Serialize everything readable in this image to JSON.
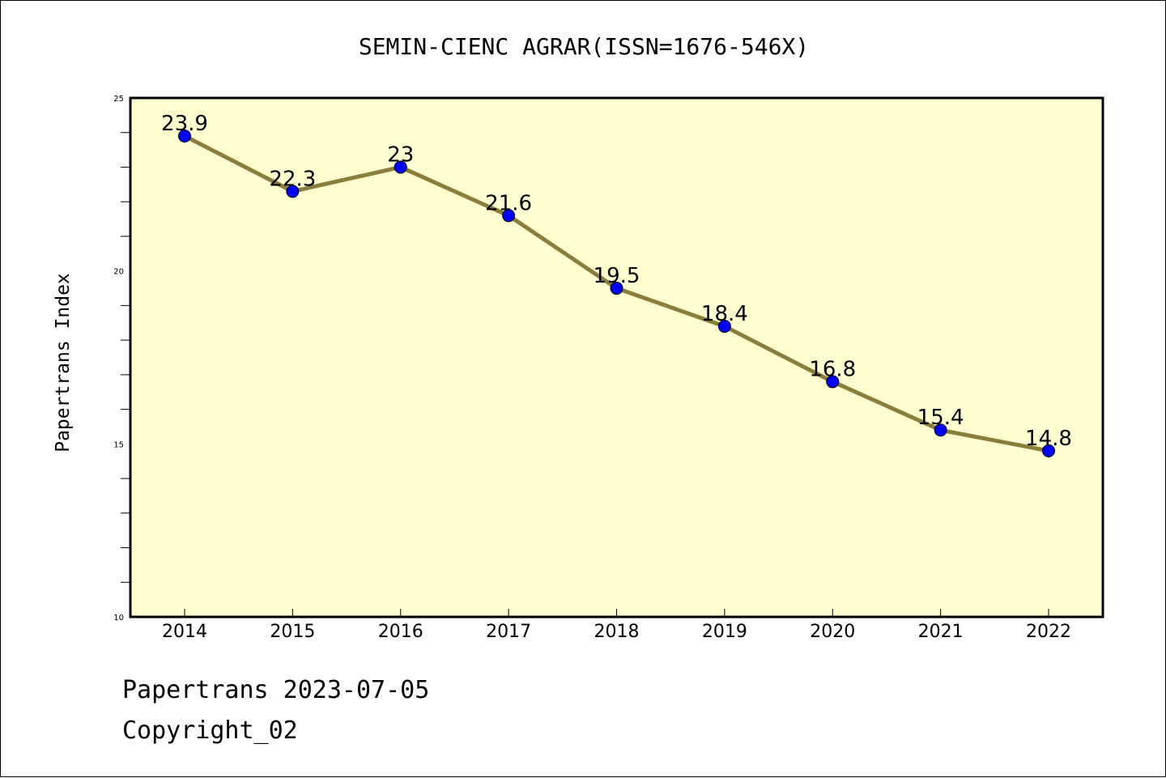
{
  "chart_data": {
    "type": "line",
    "title": "SEMIN-CIENC AGRAR(ISSN=1676-546X)",
    "xlabel": "",
    "ylabel": "Papertrans Index",
    "categories": [
      "2014",
      "2015",
      "2016",
      "2017",
      "2018",
      "2019",
      "2020",
      "2021",
      "2022"
    ],
    "series": [
      {
        "values": [
          23.9,
          22.3,
          23,
          21.6,
          19.5,
          18.4,
          16.8,
          15.4,
          14.8
        ],
        "labels": [
          "23.9",
          "22.3",
          "23",
          "21.6",
          "19.5",
          "18.4",
          "16.8",
          "15.4",
          "14.8"
        ]
      }
    ],
    "ylim": [
      10,
      25
    ],
    "yticks": [
      "10",
      "15",
      "20",
      "25"
    ],
    "grid": false,
    "legend": "none",
    "colors": {
      "plot_background": "#ffffd0",
      "line": "#8b7d3a",
      "marker": "#0000ff"
    }
  },
  "footer": {
    "line1": "Papertrans 2023-07-05",
    "line2": "Copyright_02"
  }
}
